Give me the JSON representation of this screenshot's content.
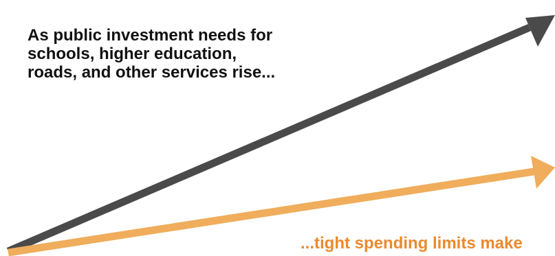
{
  "colors": {
    "investment_arrow": "#4a4a4a",
    "spending_arrow": "#f0ad5c",
    "text_dark": "#111111",
    "text_accent": "#ea8a2e"
  },
  "captions": {
    "investment_lines": [
      "As public investment needs for",
      "schools, higher education,",
      "roads, and other services rise..."
    ],
    "spending_text": "...tight spending limits make"
  }
}
